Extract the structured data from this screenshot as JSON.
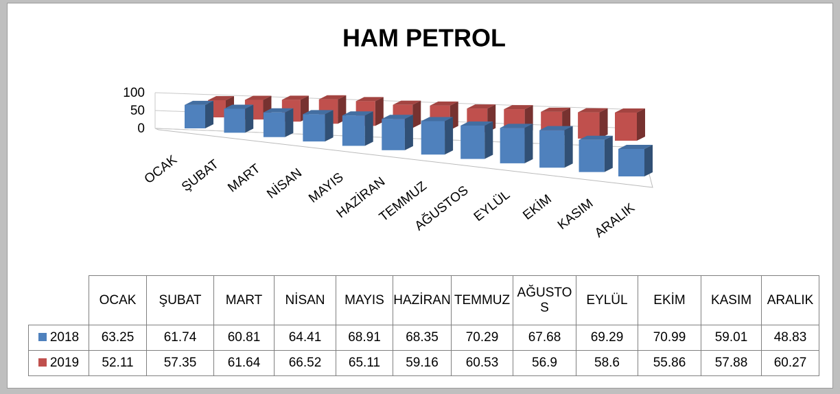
{
  "chart_data": {
    "type": "bar3d",
    "title": "HAM PETROL",
    "categories": [
      "OCAK",
      "ŞUBAT",
      "MART",
      "NİSAN",
      "MAYIS",
      "HAZİRAN",
      "TEMMUZ",
      "AĞUSTOS",
      "EYLÜL",
      "EKİM",
      "KASIM",
      "ARALIK"
    ],
    "series": [
      {
        "name": "2018",
        "color": "#4f81bd",
        "values": [
          63.25,
          61.74,
          60.81,
          64.41,
          68.91,
          68.35,
          70.29,
          67.68,
          69.29,
          70.99,
          59.01,
          48.83
        ]
      },
      {
        "name": "2019",
        "color": "#c0504d",
        "values": [
          52.11,
          57.35,
          61.64,
          66.52,
          65.11,
          59.16,
          60.53,
          56.9,
          58.6,
          55.86,
          57.88,
          60.27
        ]
      }
    ],
    "ylim": [
      0,
      100
    ],
    "yticks": [
      0,
      50,
      100
    ],
    "grid": true
  }
}
